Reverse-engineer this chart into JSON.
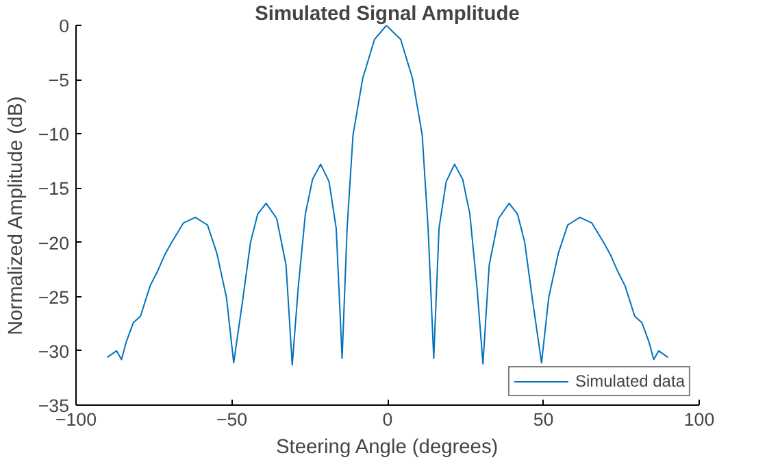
{
  "chart_data": {
    "type": "line",
    "title": "Simulated Signal Amplitude",
    "xlabel": "Steering Angle (degrees)",
    "ylabel": "Normalized Amplitude (dB)",
    "xlim": [
      -100,
      100
    ],
    "ylim": [
      -35,
      0
    ],
    "xticks": [
      -100,
      -50,
      0,
      50,
      100
    ],
    "yticks": [
      -35,
      -30,
      -25,
      -20,
      -15,
      -10,
      -5,
      0
    ],
    "grid": false,
    "legend": "bottom right",
    "series": [
      {
        "name": "Simulated data",
        "color": "#0072bd",
        "x": [
          -90,
          -87,
          -85.4,
          -83.9,
          -81.6,
          -79.3,
          -76.2,
          -73.9,
          -71.6,
          -69.3,
          -65.5,
          -61.7,
          -57.8,
          -54.8,
          -51.7,
          -49.4,
          -46.4,
          -44.0,
          -41.7,
          -39.0,
          -35.6,
          -32.6,
          -30.6,
          -28.7,
          -26.4,
          -24.1,
          -21.5,
          -18.8,
          -16.5,
          -14.6,
          -13.0,
          -11.1,
          -8.0,
          -4.2,
          -0.4,
          4.2,
          8.0,
          11.1,
          13.0,
          14.8,
          16.5,
          18.8,
          21.5,
          24.1,
          26.4,
          28.7,
          30.6,
          32.6,
          35.6,
          39.0,
          41.7,
          44.0,
          46.4,
          49.4,
          51.7,
          54.8,
          57.8,
          61.7,
          65.5,
          69.3,
          71.6,
          73.9,
          76.2,
          79.3,
          81.6,
          83.9,
          85.4,
          87,
          90
        ],
        "values": [
          -30.6,
          -30.0,
          -30.8,
          -29.2,
          -27.4,
          -26.8,
          -24.0,
          -22.7,
          -21.2,
          -20.0,
          -18.2,
          -17.7,
          -18.4,
          -21.0,
          -25.1,
          -31.1,
          -25.1,
          -20.0,
          -17.4,
          -16.4,
          -17.8,
          -22.1,
          -31.3,
          -24.2,
          -17.4,
          -14.2,
          -12.8,
          -14.4,
          -18.7,
          -30.7,
          -18.7,
          -10.1,
          -4.9,
          -1.3,
          0,
          -1.3,
          -4.9,
          -10.1,
          -18.7,
          -30.7,
          -18.7,
          -14.4,
          -12.8,
          -14.2,
          -17.4,
          -24.2,
          -31.2,
          -22.1,
          -17.8,
          -16.4,
          -17.4,
          -20.0,
          -25.1,
          -31.1,
          -25.1,
          -21.0,
          -18.4,
          -17.7,
          -18.2,
          -20.0,
          -21.2,
          -22.7,
          -24.0,
          -26.8,
          -27.4,
          -29.2,
          -30.8,
          -30.0,
          -30.6
        ]
      }
    ]
  }
}
